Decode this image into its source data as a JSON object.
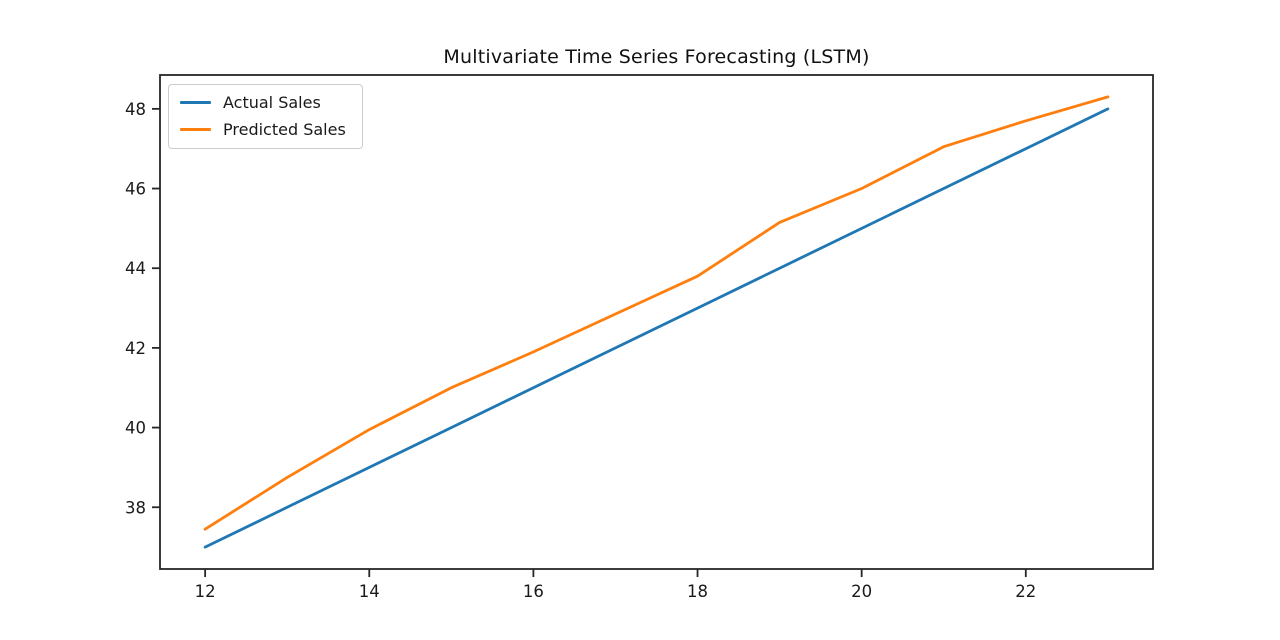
{
  "chart_data": {
    "type": "line",
    "title": "Multivariate Time Series Forecasting (LSTM)",
    "xlabel": "",
    "ylabel": "",
    "x": [
      12,
      13,
      14,
      15,
      16,
      17,
      18,
      19,
      20,
      21,
      22,
      23
    ],
    "series": [
      {
        "name": "Actual Sales",
        "color": "#1f77b4",
        "values": [
          37.0,
          38.0,
          39.0,
          40.0,
          41.0,
          42.0,
          43.0,
          44.0,
          45.0,
          46.0,
          47.0,
          48.0
        ]
      },
      {
        "name": "Predicted Sales",
        "color": "#ff7f0e",
        "values": [
          37.45,
          38.75,
          39.95,
          41.0,
          41.9,
          42.85,
          43.8,
          45.15,
          46.0,
          47.05,
          47.7,
          48.3
        ]
      }
    ],
    "x_ticks": [
      12,
      14,
      16,
      18,
      20,
      22
    ],
    "y_ticks": [
      38,
      40,
      42,
      44,
      46,
      48
    ],
    "xlim": [
      11.45,
      23.55
    ],
    "ylim": [
      36.45,
      48.85
    ],
    "grid": false,
    "legend_position": "upper left",
    "spine_color": "#262626",
    "tick_label_color": "#1a1a1a"
  }
}
